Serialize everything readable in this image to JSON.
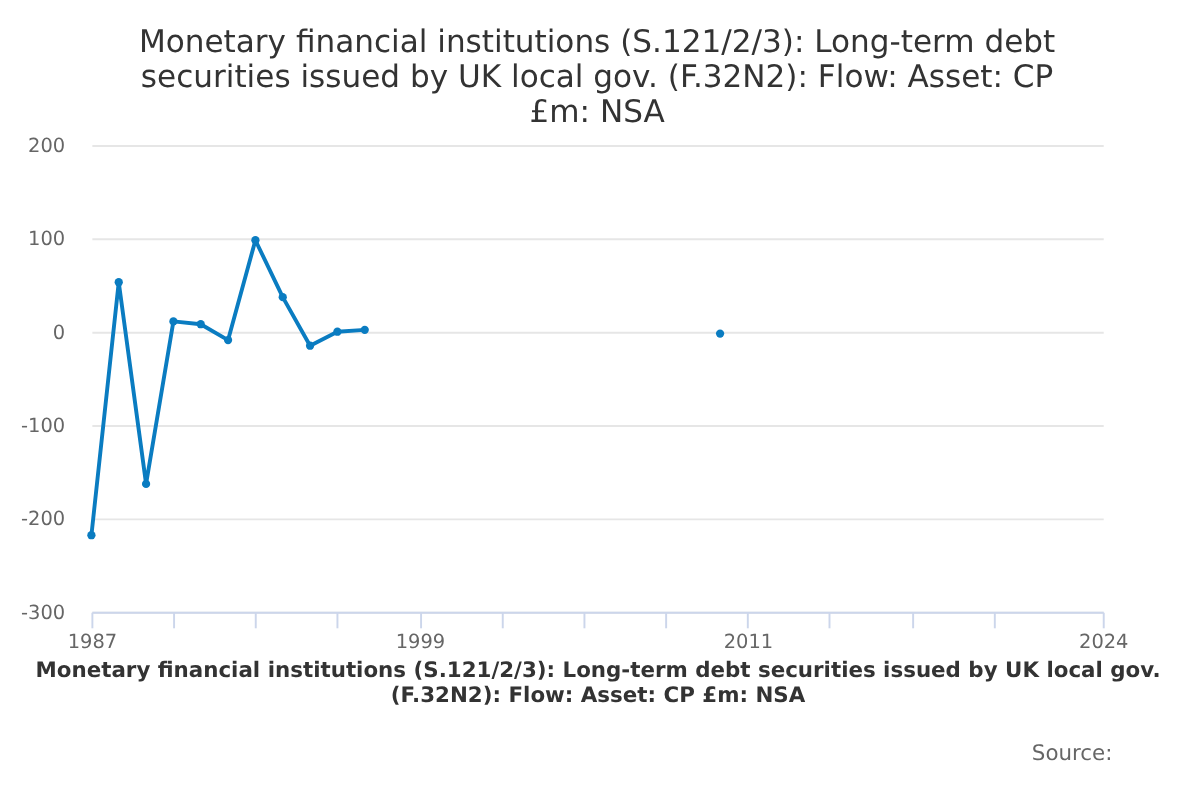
{
  "chart_data": {
    "type": "line",
    "title": "Monetary financial institutions (S.121/2/3): Long-term debt securities issued by UK local gov. (F.32N2): Flow: Asset: CP £m: NSA",
    "xlabel": "Monetary financial institutions (S.121/2/3): Long-term debt securities issued by UK local gov. (F.32N2): Flow: Asset: CP £m: NSA",
    "annotations": [
      "Source:"
    ],
    "x": [
      1987,
      1988,
      1989,
      1990,
      1991,
      1992,
      1993,
      1994,
      1995,
      1996,
      1997,
      1998,
      2010
    ],
    "series": [
      {
        "color": "#0a7cc1",
        "values": [
          -218,
          53,
          -163,
          11,
          8,
          -9,
          98,
          37,
          -15,
          0,
          2,
          null,
          -2
        ]
      }
    ],
    "xlim": [
      1987,
      2024
    ],
    "xticks": [
      1987,
      {
        "value": 1990,
        "label": null
      },
      {
        "value": 1993,
        "label": null
      },
      {
        "value": 1996,
        "label": null
      },
      1999,
      {
        "value": 2002,
        "label": null
      },
      {
        "value": 2005,
        "label": null
      },
      {
        "value": 2008,
        "label": null
      },
      2011,
      {
        "value": 2014,
        "label": null
      },
      {
        "value": 2017,
        "label": null
      },
      {
        "value": 2020,
        "label": null
      },
      2024
    ],
    "ylim": [
      -300,
      200
    ],
    "yticks": [
      -300,
      -200,
      -100,
      0,
      100,
      200
    ],
    "grid": "y",
    "marker": "circle",
    "line_style": "solid",
    "legend": false
  }
}
